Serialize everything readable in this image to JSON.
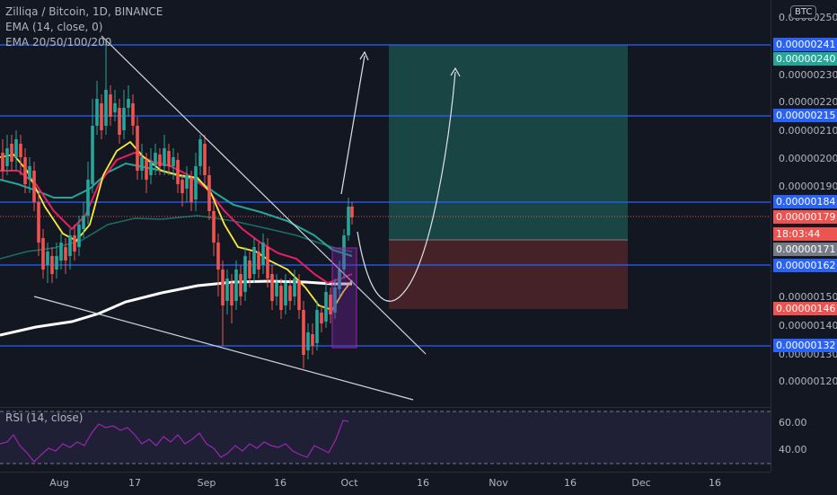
{
  "legend": {
    "title": "Zilliqa / Bitcoin, 1D, BINANCE",
    "ema_single": "EMA (14, close, 0)",
    "ema_multi": "EMA 20/50/100/200"
  },
  "currency_badge": "BTC",
  "price_axis": {
    "labels": [
      "0.00000250",
      "0.00000230",
      "0.00000220",
      "0.00000210",
      "0.00000200",
      "0.00000190",
      "0.00000150",
      "0.00000140",
      "0.00000130",
      "0.00000120"
    ],
    "blue_badges": [
      "0.00000241",
      "0.00000215",
      "0.00000184",
      "0.00000162",
      "0.00000132"
    ],
    "target_badge": "0.00000240",
    "current_price": "0.00000179",
    "countdown": "18:03:44",
    "entry_badge": "0.00000171",
    "stop_badge": "0.00000146"
  },
  "rsi": {
    "label": "RSI (14, close)",
    "levels": [
      "60.00",
      "40.00"
    ]
  },
  "time_axis": [
    "Aug",
    "17",
    "Sep",
    "16",
    "Oct",
    "16",
    "Nov",
    "16",
    "Dec",
    "16"
  ],
  "colors": {
    "background": "#131722",
    "bull": "#26a69a",
    "bear": "#ef5350",
    "blue_line": "#2962ff",
    "target_zone": "#1b4d4a",
    "stop_zone": "#4a2328",
    "rsi": "#9c27b0",
    "ema_fast": "#ffeb3b",
    "ema_red": "#e91e63",
    "ema_teal": "#26a69a",
    "ema_white": "#ffffff"
  }
}
